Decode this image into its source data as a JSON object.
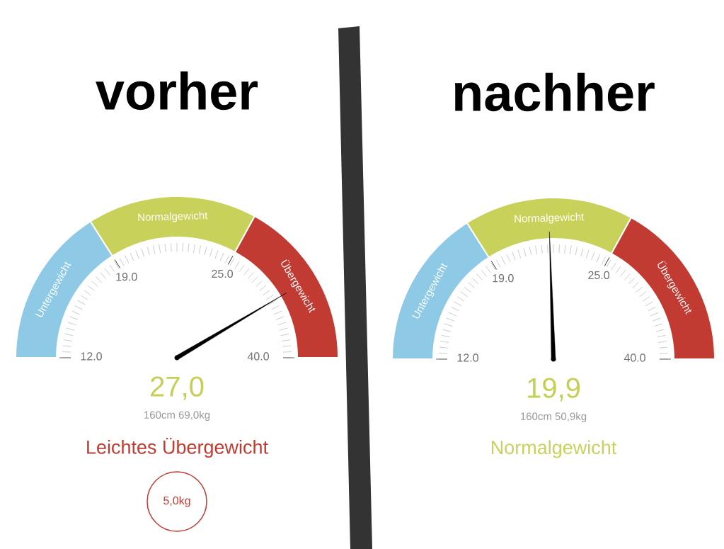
{
  "chart_data": [
    {
      "type": "donut",
      "title": "vorher",
      "categories": [
        "Untergewicht",
        "Normalgewicht",
        "Übergewicht"
      ],
      "values": [
        32,
        34,
        34
      ],
      "colors": [
        "#8ecae6",
        "#c8d15a",
        "#c23b33"
      ],
      "needle": "Übergewicht",
      "annotations": [
        "12.0",
        "19.0",
        "25.0",
        "40.0",
        "27,0",
        "160cm 69,0kg",
        "Leichtes Übergewicht",
        "5,0kg"
      ]
    },
    {
      "type": "donut",
      "title": "nachher",
      "categories": [
        "Untergewicht",
        "Normalgewicht",
        "Übergewicht"
      ],
      "values": [
        32,
        34,
        34
      ],
      "colors": [
        "#8ecae6",
        "#c8d15a",
        "#c23b33"
      ],
      "needle": "Normalgewicht",
      "annotations": [
        "12.0",
        "19.0",
        "25.0",
        "40.0",
        "19,9",
        "160cm 50,9kg",
        "Normalgewicht"
      ]
    }
  ]
}
